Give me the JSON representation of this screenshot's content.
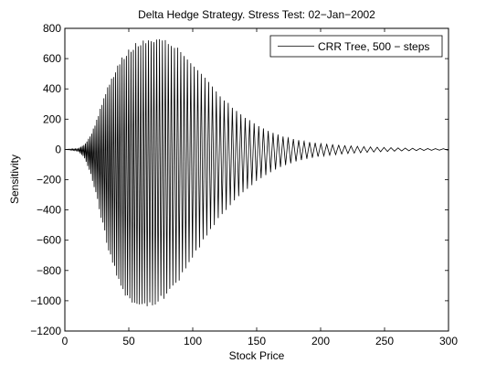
{
  "chart_data": {
    "type": "line",
    "title": "Delta Hedge Strategy. Stress Test: 02−Jan−2002",
    "xlabel": "Stock Price",
    "ylabel": "Sensitivity",
    "xlim": [
      0,
      300
    ],
    "ylim": [
      -1200,
      800
    ],
    "xticks": [
      0,
      50,
      100,
      150,
      200,
      250,
      300
    ],
    "yticks": [
      -1200,
      -1000,
      -800,
      -600,
      -400,
      -200,
      0,
      200,
      400,
      600,
      800
    ],
    "xtick_labels": [
      "0",
      "50",
      "100",
      "150",
      "200",
      "250",
      "300"
    ],
    "ytick_labels": [
      "−1200",
      "−1000",
      "−800",
      "−600",
      "−400",
      "−200",
      "0",
      "200",
      "400",
      "600",
      "800"
    ],
    "grid": false,
    "legend_position": "top-right",
    "series": [
      {
        "name": "CRR Tree, 500 − steps",
        "color": "#000000",
        "style": "oscillating",
        "upper_envelope": {
          "x": [
            0,
            10,
            15,
            20,
            25,
            30,
            35,
            40,
            45,
            50,
            55,
            60,
            65,
            70,
            75,
            80,
            85,
            90,
            95,
            100,
            110,
            120,
            130,
            140,
            150,
            160,
            170,
            180,
            190,
            200,
            220,
            240,
            260,
            280,
            300
          ],
          "y": [
            0,
            5,
            30,
            90,
            200,
            330,
            450,
            550,
            625,
            680,
            710,
            730,
            740,
            740,
            735,
            720,
            695,
            660,
            620,
            570,
            470,
            370,
            290,
            220,
            165,
            120,
            88,
            66,
            50,
            38,
            25,
            16,
            10,
            6,
            4
          ]
        },
        "lower_envelope": {
          "x": [
            0,
            10,
            15,
            20,
            25,
            30,
            35,
            40,
            45,
            50,
            55,
            60,
            65,
            70,
            75,
            80,
            85,
            90,
            95,
            100,
            110,
            120,
            130,
            140,
            150,
            160,
            170,
            180,
            190,
            200,
            220,
            240,
            260,
            280,
            300
          ],
          "y": [
            0,
            -10,
            -50,
            -160,
            -320,
            -520,
            -700,
            -840,
            -940,
            -1005,
            -1035,
            -1040,
            -1045,
            -1030,
            -1005,
            -970,
            -920,
            -860,
            -790,
            -720,
            -585,
            -465,
            -365,
            -280,
            -210,
            -155,
            -112,
            -82,
            -60,
            -45,
            -28,
            -18,
            -11,
            -7,
            -4
          ]
        }
      }
    ]
  }
}
